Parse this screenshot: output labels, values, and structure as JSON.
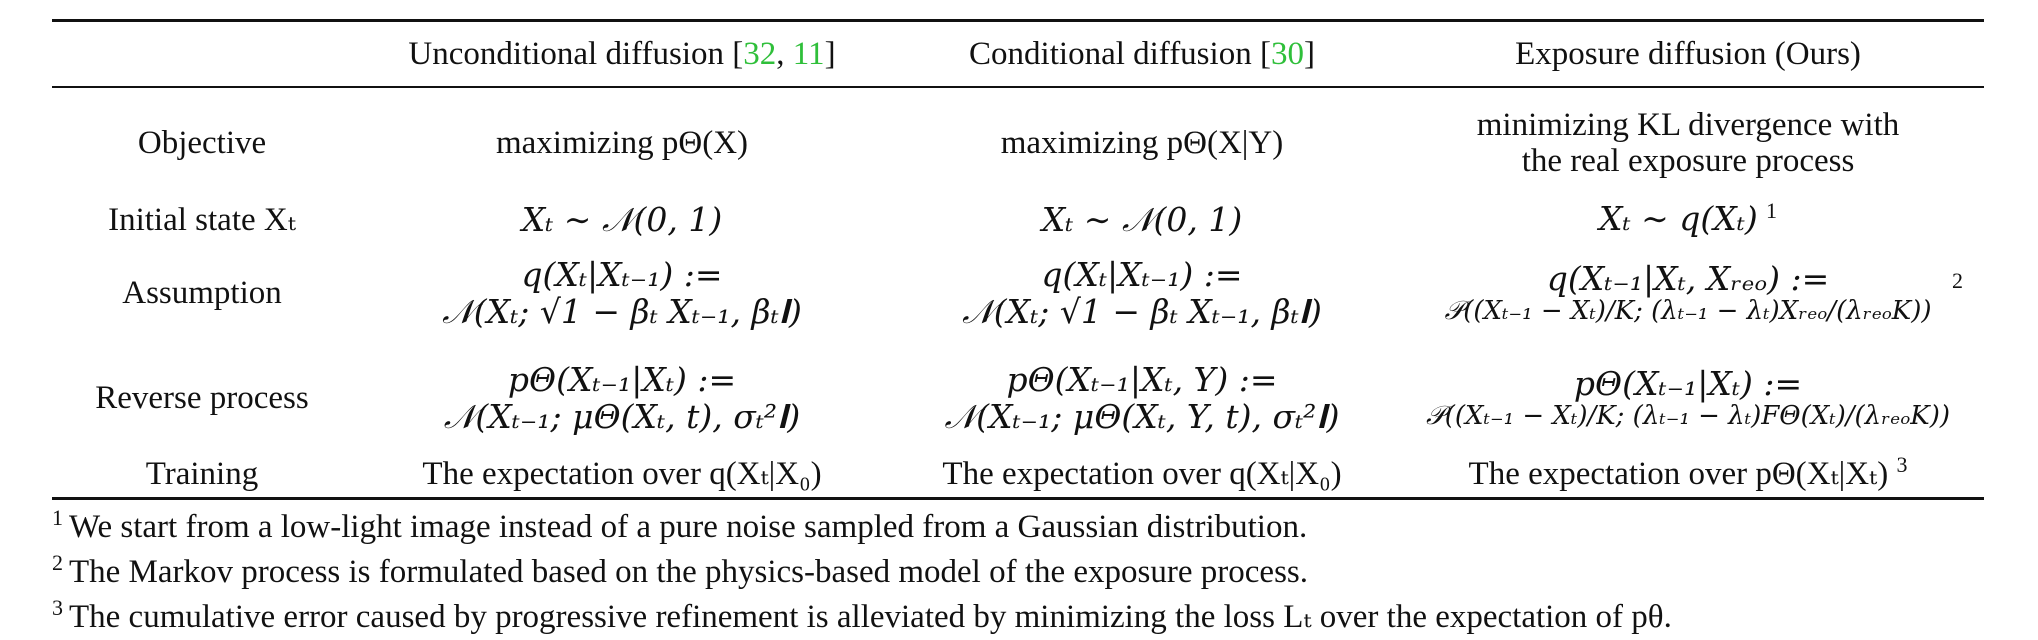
{
  "table": {
    "header": {
      "col0": "",
      "col1_text": "Unconditional diffusion [",
      "col1_cite_a": "32",
      "col1_sep": ", ",
      "col1_cite_b": "11",
      "col1_close": "]",
      "col2_text": "Conditional diffusion [",
      "col2_cite": "30",
      "col2_close": "]",
      "col3": "Exposure diffusion (Ours)"
    },
    "rows": [
      {
        "label": "Objective",
        "uncond": "maximizing pΘ(X)",
        "cond": "maximizing pΘ(X|Y)",
        "ours_line1": "minimizing KL divergence with",
        "ours_line2": "the real exposure process"
      },
      {
        "label": "Initial state Xₜ",
        "uncond": "Xₜ ∼ 𝒩(0, 1)",
        "cond": "Xₜ ∼ 𝒩(0, 1)",
        "ours": "Xₜ ∼ q(Xₜ)",
        "ours_note": "1"
      },
      {
        "label": "Assumption",
        "uncond_line1": "q(Xₜ|Xₜ₋₁) :=",
        "uncond_line2": "𝒩(Xₜ; √1 − βₜ Xₜ₋₁, βₜ𝐈)",
        "cond_line1": "q(Xₜ|Xₜ₋₁) :=",
        "cond_line2": "𝒩(Xₜ; √1 − βₜ Xₜ₋₁, βₜ𝐈)",
        "ours_line1": "q(Xₜ₋₁|Xₜ, Xᵣₑₒ) :=",
        "ours_line2": "𝒫((Xₜ₋₁ − Xₜ)/K; (λₜ₋₁ − λₜ)Xᵣₑₒ/(λᵣₑₒK))",
        "ours_note": "2"
      },
      {
        "label": "Reverse process",
        "uncond_line1": "pΘ(Xₜ₋₁|Xₜ) :=",
        "uncond_line2": "𝒩(Xₜ₋₁; μΘ(Xₜ, t), σₜ²𝐈)",
        "cond_line1": "pΘ(Xₜ₋₁|Xₜ, Y) :=",
        "cond_line2": "𝒩(Xₜ₋₁; μΘ(Xₜ, Y, t), σₜ²𝐈)",
        "ours_line1": "pΘ(Xₜ₋₁|Xₜ) :=",
        "ours_line2": "𝒫((Xₜ₋₁ − Xₜ)/K; (λₜ₋₁ − λₜ)FΘ(Xₜ)/(λᵣₑₒK))"
      },
      {
        "label": "Training",
        "uncond": "The expectation over q(Xₜ|X₀)",
        "cond": "The expectation over q(Xₜ|X₀)",
        "ours": "The expectation over pΘ(Xₜ|Xₜ)",
        "ours_note": "3"
      }
    ]
  },
  "footnotes": [
    {
      "mark": "1",
      "text": "We start from a low-light image instead of a pure noise sampled from a Gaussian distribution."
    },
    {
      "mark": "2",
      "text": "The Markov process is formulated based on the physics-based model of the exposure process."
    },
    {
      "mark": "3",
      "text": "The cumulative error caused by progressive refinement is alleviated by minimizing the loss Lₜ over the expectation of pθ."
    }
  ]
}
